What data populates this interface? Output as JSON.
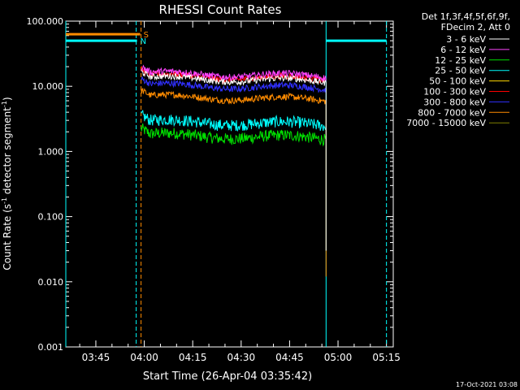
{
  "chart_data": {
    "type": "line",
    "title": "RHESSI Count Rates",
    "xlabel": "Start Time (26-Apr-04 03:35:42)",
    "ylabel_main": "Count Rate (s",
    "ylabel_sup1": "-1",
    "ylabel_mid": " detector segment",
    "ylabel_sup2": "-1",
    "ylabel_end": ")",
    "y_scale": "log",
    "ylim": [
      0.001,
      100
    ],
    "xlim_minutes": [
      215.7,
      317.1
    ],
    "x_ticks": [
      {
        "label": "03:45",
        "minutes": 225
      },
      {
        "label": "04:00",
        "minutes": 240
      },
      {
        "label": "04:15",
        "minutes": 255
      },
      {
        "label": "04:30",
        "minutes": 270
      },
      {
        "label": "04:45",
        "minutes": 285
      },
      {
        "label": "05:00",
        "minutes": 300
      },
      {
        "label": "05:15",
        "minutes": 315
      }
    ],
    "y_ticks": [
      {
        "label": "100.000",
        "value": 100
      },
      {
        "label": "10.000",
        "value": 10
      },
      {
        "label": "1.000",
        "value": 1
      },
      {
        "label": "0.100",
        "value": 0.1
      },
      {
        "label": "0.010",
        "value": 0.01
      },
      {
        "label": "0.001",
        "value": 0.001
      }
    ],
    "legend": {
      "position": "top-right",
      "header": [
        "Det 1f,3f,4f,5f,6f,9f,",
        "FDecim 2, Att 0"
      ]
    },
    "series": [
      {
        "name": "3 - 6 keV",
        "color": "#ffffff",
        "level": 13.5,
        "tail": 0.03
      },
      {
        "name": "6 - 12 keV",
        "color": "#ff44ff",
        "level": 16,
        "tail": null
      },
      {
        "name": "12 - 25 keV",
        "color": "#00e000",
        "level": 1.8,
        "tail": null
      },
      {
        "name": "25 - 50 keV",
        "color": "#00ffff",
        "level": 2.9,
        "tail": null
      },
      {
        "name": "50 - 100 keV",
        "color": "#ffd700",
        "level": null,
        "tail": null
      },
      {
        "name": "100 - 300 keV",
        "color": "#ff0000",
        "level": 14.5,
        "tail": null
      },
      {
        "name": "300 - 800 keV",
        "color": "#3030ff",
        "level": 10.5,
        "tail": null
      },
      {
        "name": "800 - 7000 keV",
        "color": "#ff8c00",
        "level": 7.0,
        "tail": 0.012
      },
      {
        "name": "7000 - 15000 keV",
        "color": "#808000",
        "level": null,
        "tail": null
      }
    ],
    "data_interval_minutes": [
      239.0,
      296.3
    ],
    "attenuator_markers": [
      {
        "label": "S",
        "color": "#ff8c00",
        "x_minutes": 239.0,
        "y_value": 63,
        "start_minutes": 215.7
      },
      {
        "label": "N",
        "color": "#00ffff",
        "x_minutes": 238.0,
        "y_value": 50,
        "start_minutes": 215.7
      }
    ],
    "night_segments": [
      {
        "color": "#00ffff",
        "from_minutes": 296.3,
        "to_minutes": 315.0,
        "y_value": 50
      }
    ],
    "vertical_lines": [
      {
        "color": "#00ffff",
        "x_minutes": 215.7,
        "style": "solid"
      },
      {
        "color": "#00ffff",
        "x_minutes": 237.5,
        "style": "dashed"
      },
      {
        "color": "#ff8c00",
        "x_minutes": 239.0,
        "style": "dashed"
      },
      {
        "color": "#00ffff",
        "x_minutes": 296.3,
        "style": "solid"
      },
      {
        "color": "#00ffff",
        "x_minutes": 315.0,
        "style": "dashed"
      }
    ],
    "footer_date": "17-Oct-2021 03:08"
  }
}
